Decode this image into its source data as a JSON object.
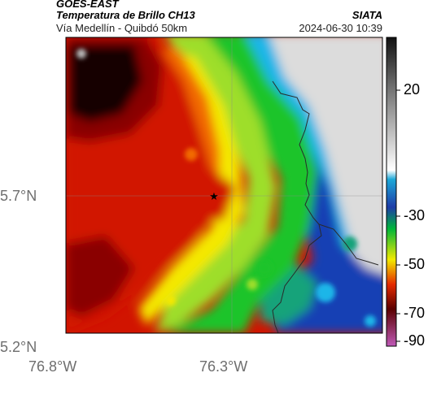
{
  "header": {
    "satellite": "GOES-EAST",
    "product": "Temperatura de Brillo CH13",
    "region": "Vía Medellín - Quibdó 50km",
    "agency": "SIATA",
    "datetime": "2024-06-30 10:39"
  },
  "axes": {
    "lat_labels": [
      "5.7°N",
      "5.2°N"
    ],
    "lon_labels": [
      "76.8°W",
      "76.3°W"
    ]
  },
  "colorbar": {
    "ticks": [
      "20",
      "-30",
      "-50",
      "-70",
      "-90"
    ],
    "stops": [
      "#111111",
      "#7a7a7a",
      "#ffffff",
      "#1ca8d8",
      "#1e3ca8",
      "#00b63a",
      "#f2ea00",
      "#e52a00",
      "#5a0000",
      "#c05ab8"
    ]
  },
  "marker": {
    "symbol": "★"
  },
  "colors": {
    "deep": "#160000",
    "darkred": "#8a0000",
    "red": "#d11400",
    "orange": "#f26a00",
    "yellow": "#f4e800",
    "lightgreen": "#9ede2a",
    "green": "#1cc42c",
    "teal": "#12a37a",
    "blue": "#1440b4",
    "cyan": "#1cb6e8",
    "lightgray": "#dcdcdc",
    "border": "#2a2a2a"
  }
}
